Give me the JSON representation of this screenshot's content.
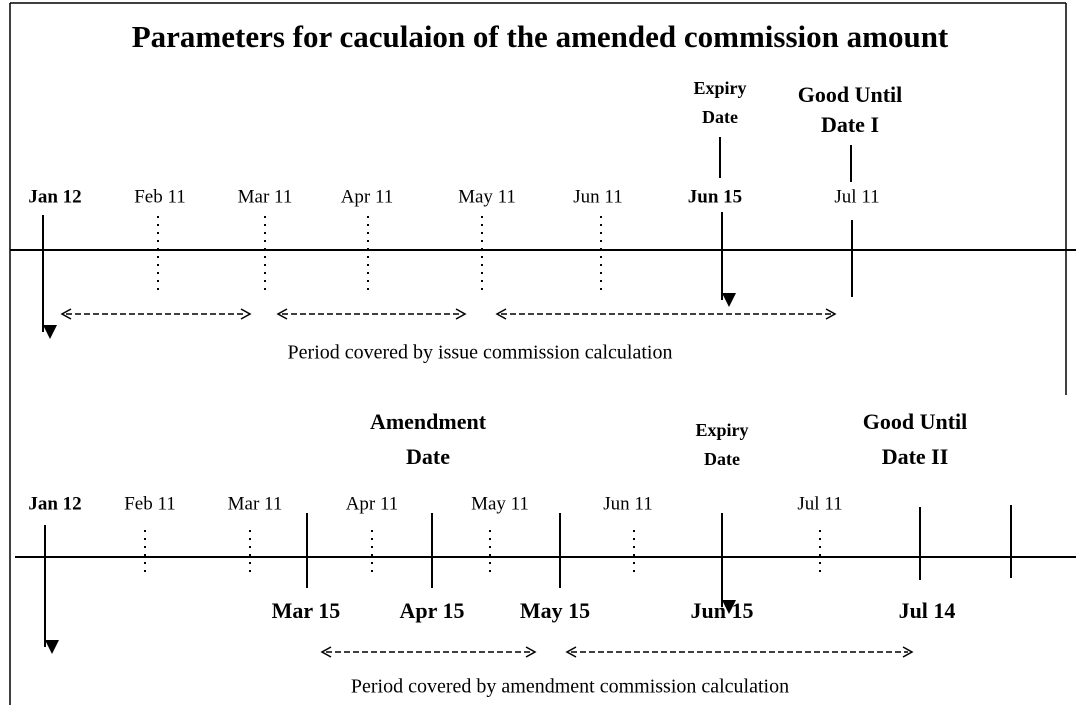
{
  "title": "Parameters for caculaion of the amended commission amount",
  "issue": {
    "markers": [
      {
        "line1": "Expiry",
        "line2": "Date"
      },
      {
        "line1": "Good Until",
        "line2": "Date I"
      }
    ],
    "dates": [
      "Jan 12",
      "Feb 11",
      "Mar 11",
      "Apr 11",
      "May 11",
      "Jun 11",
      "Jun 15",
      "Jul 11"
    ],
    "caption": "Period covered by issue commission calculation"
  },
  "amendment": {
    "markers": [
      {
        "line1": "Amendment",
        "line2": "Date"
      },
      {
        "line1": "Expiry",
        "line2": "Date"
      },
      {
        "line1": "Good Until",
        "line2": "Date II"
      }
    ],
    "dates": [
      "Jan 12",
      "Feb 11",
      "Mar 11",
      "Apr 11",
      "May 11",
      "Jun 11",
      "Jul 11"
    ],
    "event_dates": [
      "Mar 15",
      "Apr 15",
      "May 15",
      "Jun 15",
      "Jul 14"
    ],
    "caption": "Period covered by amendment commission calculation"
  }
}
